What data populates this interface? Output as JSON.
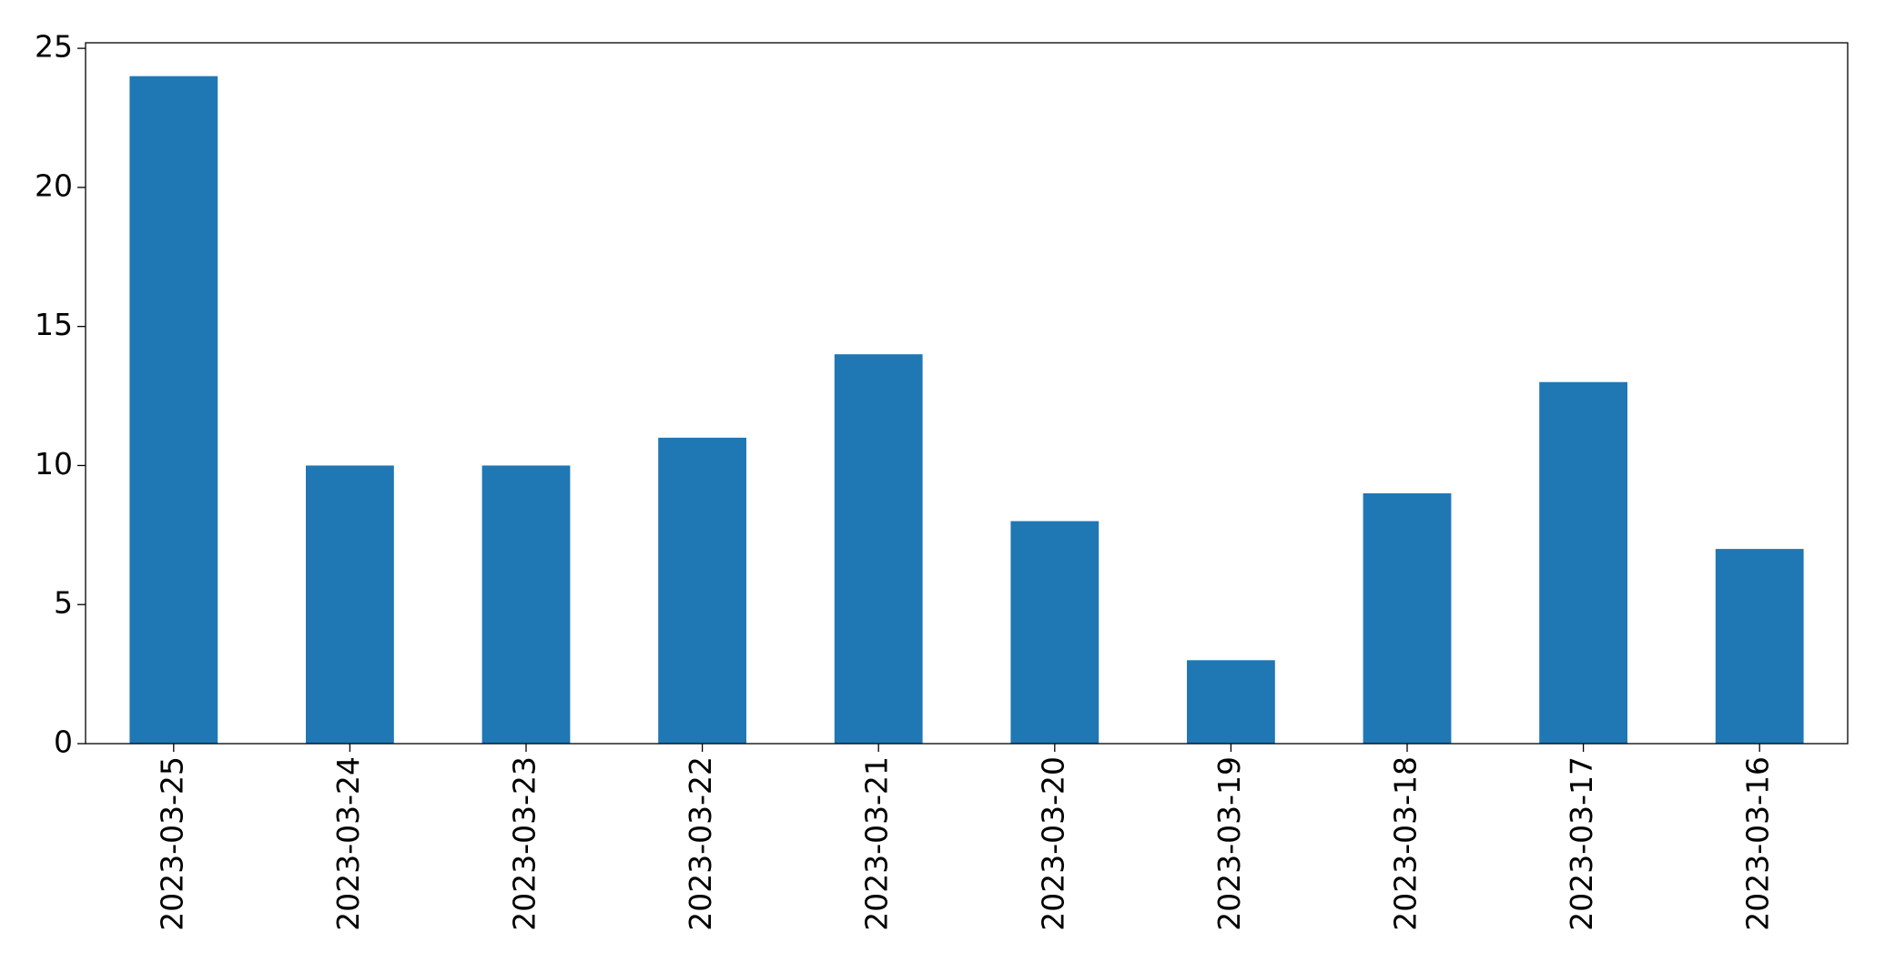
{
  "chart_data": {
    "type": "bar",
    "categories": [
      "2023-03-25",
      "2023-03-24",
      "2023-03-23",
      "2023-03-22",
      "2023-03-21",
      "2023-03-20",
      "2023-03-19",
      "2023-03-18",
      "2023-03-17",
      "2023-03-16"
    ],
    "values": [
      24,
      10,
      10,
      11,
      14,
      8,
      3,
      9,
      13,
      7
    ],
    "color": "#1f77b4",
    "ylim": [
      0,
      25.2
    ],
    "yticks": [
      0,
      5,
      10,
      15,
      20,
      25
    ],
    "grid": false
  }
}
